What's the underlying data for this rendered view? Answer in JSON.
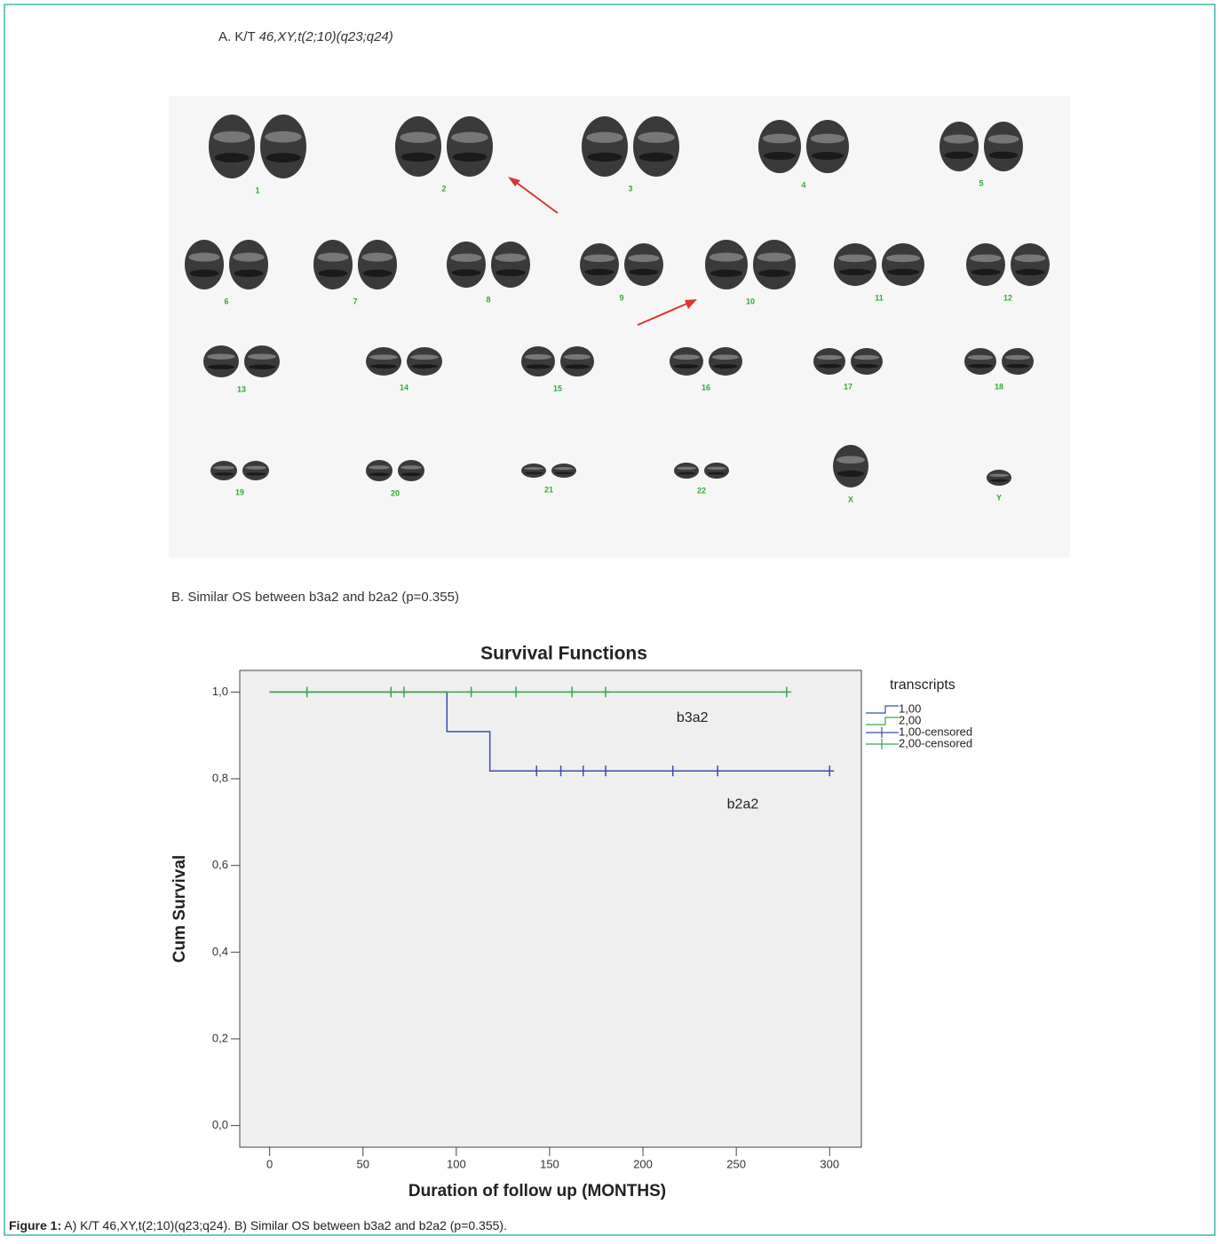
{
  "panel_a": {
    "prefix": "A. K/T ",
    "karyotype_formula": "46,XY,t(2;10)(q23;q24)",
    "chromosome_labels": [
      "1",
      "2",
      "3",
      "4",
      "5",
      "6",
      "7",
      "8",
      "9",
      "10",
      "11",
      "12",
      "13",
      "14",
      "15",
      "16",
      "17",
      "18",
      "19",
      "20",
      "21",
      "22",
      "X",
      "Y"
    ]
  },
  "panel_b": {
    "heading": "B. Similar OS between b3a2 and b2a2 (p=0.355)"
  },
  "chart_data": {
    "type": "step",
    "title": "Survival Functions",
    "x_label": "Duration of follow up (MONTHS)",
    "y_label": "Cum Survival",
    "legend_title": "transcripts",
    "legend": "right",
    "xlim": [
      -16,
      317
    ],
    "ylim": [
      -0.05,
      1.05
    ],
    "xticks": [
      0,
      50,
      100,
      150,
      200,
      250,
      300
    ],
    "yticks": [
      {
        "value": 0,
        "label": "0,0"
      },
      {
        "value": 0.2,
        "label": "0,2"
      },
      {
        "value": 0.4,
        "label": "0,4"
      },
      {
        "value": 0.6,
        "label": "0,6"
      },
      {
        "value": 0.8,
        "label": "0,8"
      },
      {
        "value": 1,
        "label": "1,0"
      }
    ],
    "series": [
      {
        "name": "1,00",
        "color": "#3a4ea8",
        "x": [
          0,
          95,
          118,
          300
        ],
        "values": [
          1,
          0.909,
          0.818,
          0.818
        ]
      },
      {
        "name": "2,00",
        "color": "#3aa350",
        "x": [
          0,
          276
        ],
        "values": [
          1,
          1
        ]
      },
      {
        "name": "1,00-censored",
        "color": "#3a4ea8",
        "x": [
          143,
          156,
          168,
          180,
          216,
          240,
          300
        ],
        "values": [
          0.818,
          0.818,
          0.818,
          0.818,
          0.818,
          0.818,
          0.818
        ]
      },
      {
        "name": "2,00-censored",
        "color": "#3aa350",
        "x": [
          20,
          65,
          72,
          108,
          132,
          162,
          180,
          277
        ],
        "values": [
          1,
          1,
          1,
          1,
          1,
          1,
          1,
          1
        ]
      }
    ],
    "annotations": [
      {
        "text": "b3a2",
        "x": 218,
        "y": 0.94
      },
      {
        "text": "b2a2",
        "x": 245,
        "y": 0.74
      }
    ]
  },
  "caption": {
    "label": "Figure 1:",
    "text": " A) K/T 46,XY,t(2;10)(q23;q24). B) Similar OS between b3a2 and b2a2 (p=0.355)."
  }
}
